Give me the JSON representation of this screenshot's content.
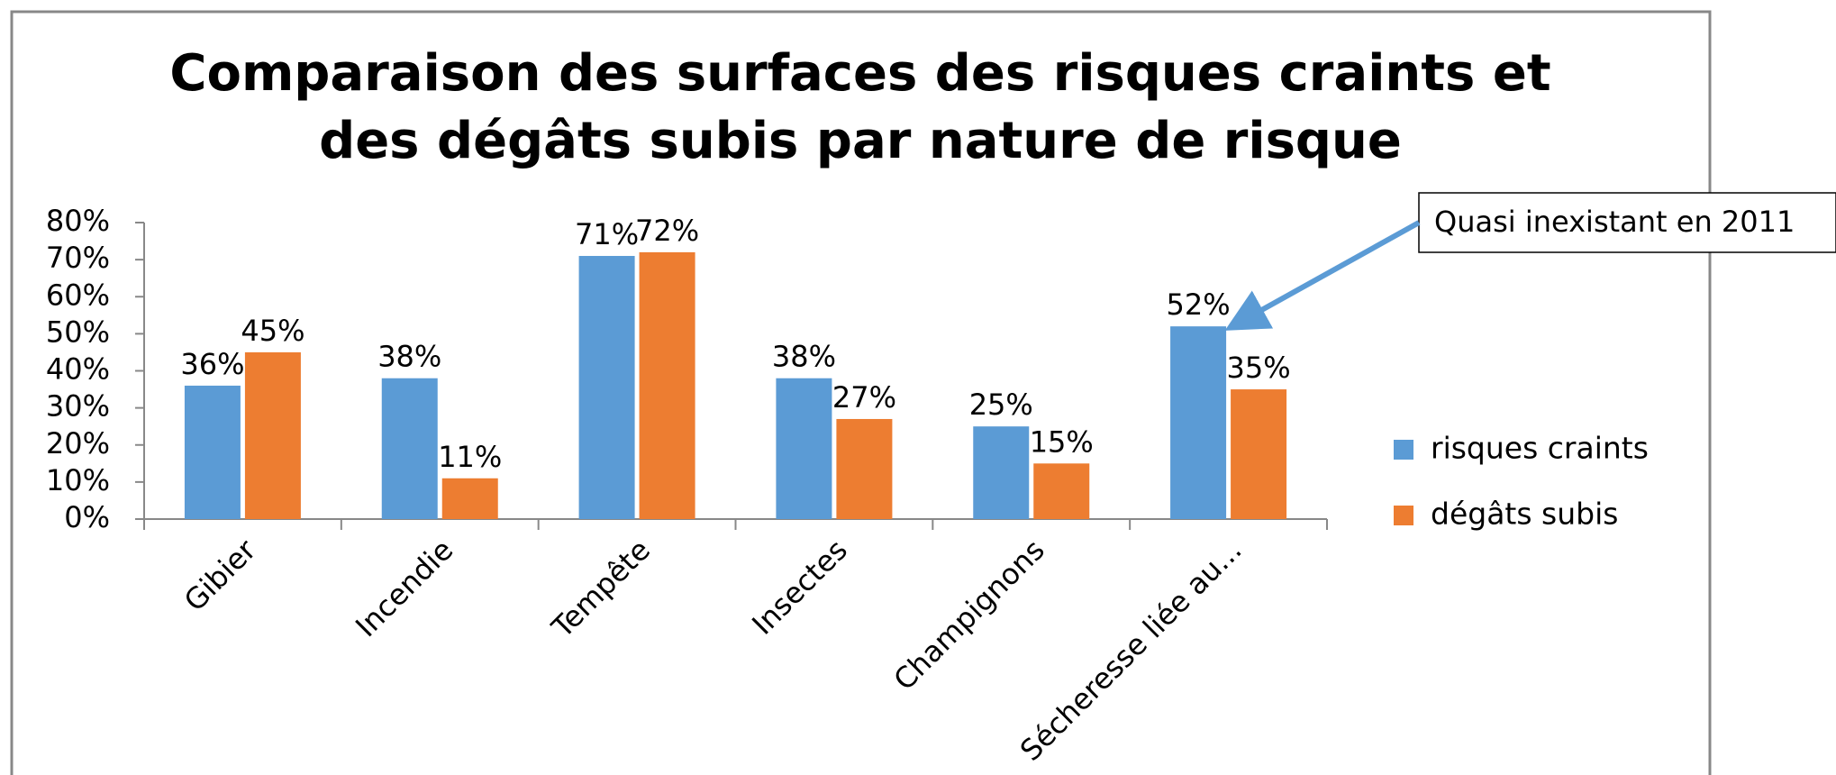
{
  "chart_data": {
    "type": "bar",
    "title": [
      "Comparaison  des surfaces des risques craints et",
      "des dégâts subis par nature de risque"
    ],
    "categories": [
      "Gibier",
      "Incendie",
      "Tempête",
      "Insectes",
      "Champignons",
      "Sécheresse liée au..."
    ],
    "series": [
      {
        "name": "risques craints",
        "color": "#5b9bd5",
        "values": [
          36,
          38,
          71,
          38,
          25,
          52
        ],
        "value_labels": [
          "36%",
          "38%",
          "71%",
          "38%",
          "25%",
          "52%"
        ]
      },
      {
        "name": "dégâts subis",
        "color": "#ed7d31",
        "values": [
          45,
          11,
          72,
          27,
          15,
          35
        ],
        "value_labels": [
          "45%",
          "11%",
          "72%",
          "27%",
          "15%",
          "35%"
        ]
      }
    ],
    "ylim": [
      0,
      80
    ],
    "yticks": [
      {
        "value": 0,
        "label": "0%"
      },
      {
        "value": 10,
        "label": "10%"
      },
      {
        "value": 20,
        "label": "20%"
      },
      {
        "value": 30,
        "label": "30%"
      },
      {
        "value": 40,
        "label": "40%"
      },
      {
        "value": 50,
        "label": "50%"
      },
      {
        "value": 60,
        "label": "60%"
      },
      {
        "value": 70,
        "label": "70%"
      },
      {
        "value": 80,
        "label": "80%"
      }
    ],
    "legend": "right",
    "annotation": "Quasi inexistant en 2011"
  }
}
